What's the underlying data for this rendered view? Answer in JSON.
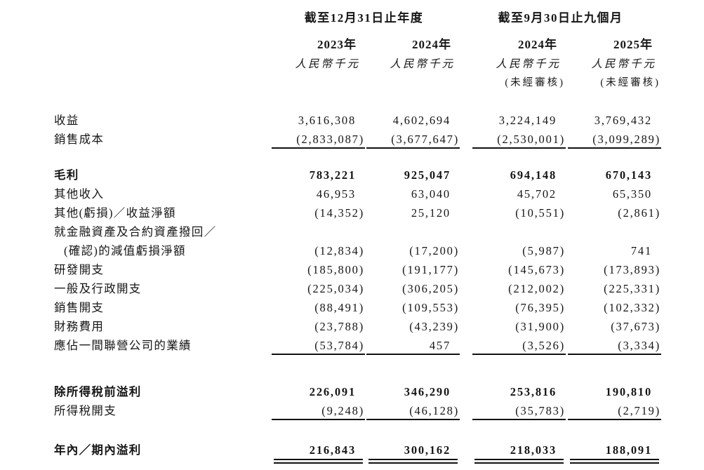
{
  "document": {
    "type": "income-statement-table",
    "currency_unit": "人民幣千元",
    "text_color": "#161616",
    "background_color": "#ffffff"
  },
  "header": {
    "group1": "截至12月31日止年度",
    "group2": "截至9月30日止九個月",
    "years": [
      "2023年",
      "2024年",
      "2024年",
      "2025年"
    ],
    "units": [
      "人民幣千元",
      "人民幣千元",
      "人民幣千元",
      "人民幣千元"
    ],
    "notes": [
      "",
      "",
      "(未經審核)",
      "(未經審核)"
    ]
  },
  "table": {
    "rows": [
      {
        "label": "收益",
        "values": [
          "3,616,308",
          "4,602,694",
          "3,224,149",
          "3,769,432"
        ]
      },
      {
        "label": "銷售成本",
        "values": [
          "(2,833,087)",
          "(3,677,647)",
          "(2,530,001)",
          "(3,099,289)"
        ],
        "rule": "single"
      },
      {
        "spacer": true
      },
      {
        "label": "毛利",
        "bold": true,
        "values": [
          "783,221",
          "925,047",
          "694,148",
          "670,143"
        ]
      },
      {
        "label": "其他收入",
        "values": [
          "46,953",
          "63,040",
          "45,702",
          "65,350"
        ]
      },
      {
        "label": "其他(虧損)／收益淨額",
        "values": [
          "(14,352)",
          "25,120",
          "(10,551)",
          "(2,861)"
        ]
      },
      {
        "label": "就金融資產及合約資產撥回／",
        "values": [
          "",
          "",
          "",
          ""
        ]
      },
      {
        "label": "(確認)的減值虧損淨額",
        "indent": true,
        "values": [
          "(12,834)",
          "(17,200)",
          "(5,987)",
          "741"
        ]
      },
      {
        "label": "研發開支",
        "values": [
          "(185,800)",
          "(191,177)",
          "(145,673)",
          "(173,893)"
        ]
      },
      {
        "label": "一般及行政開支",
        "values": [
          "(225,034)",
          "(306,205)",
          "(212,002)",
          "(225,331)"
        ]
      },
      {
        "label": "銷售開支",
        "values": [
          "(88,491)",
          "(109,553)",
          "(76,395)",
          "(102,332)"
        ]
      },
      {
        "label": "財務費用",
        "values": [
          "(23,788)",
          "(43,239)",
          "(31,900)",
          "(37,673)"
        ]
      },
      {
        "label": "應佔一間聯營公司的業績",
        "values": [
          "(53,784)",
          "457",
          "(3,526)",
          "(3,334)"
        ],
        "rule": "single"
      },
      {
        "spacer": true
      },
      {
        "label": "除所得稅前溢利",
        "bold": true,
        "values": [
          "226,091",
          "346,290",
          "253,816",
          "190,810"
        ]
      },
      {
        "label": "所得稅開支",
        "values": [
          "(9,248)",
          "(46,128)",
          "(35,783)",
          "(2,719)"
        ],
        "rule": "single"
      },
      {
        "spacer": true
      },
      {
        "label": "年內／期內溢利",
        "bold": true,
        "values": [
          "216,843",
          "300,162",
          "218,033",
          "188,091"
        ],
        "rule": "double"
      }
    ]
  }
}
